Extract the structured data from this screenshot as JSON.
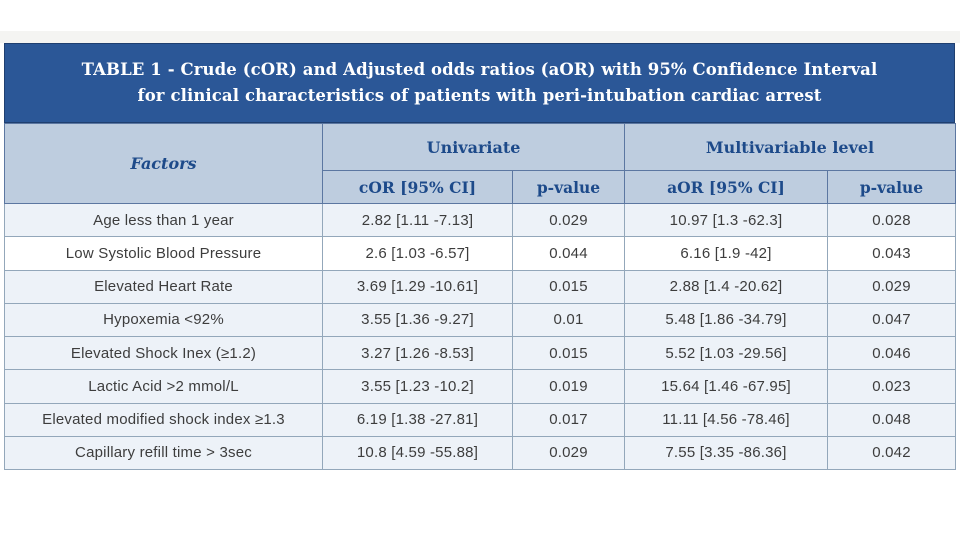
{
  "table": {
    "title_line1": "TABLE 1 - Crude (cOR) and Adjusted odds ratios (aOR) with 95% Confidence Interval",
    "title_line2": "for clinical characteristics of patients with peri-intubation cardiac arrest",
    "header": {
      "factors": "Factors",
      "group_univariate": "Univariate",
      "group_multivariable": "Multivariable level",
      "sub": [
        "cOR [95% CI]",
        "p-value",
        "aOR [95% CI]",
        "p-value"
      ]
    },
    "rows": [
      {
        "factor": "Age less than 1 year",
        "cor": "2.82 [1.11 -7.13]",
        "p1": "0.029",
        "aor": "10.97 [1.3 -62.3]",
        "p2": "0.028"
      },
      {
        "factor": "Low Systolic Blood Pressure",
        "cor": "2.6 [1.03 -6.57]",
        "p1": "0.044",
        "aor": "6.16 [1.9 -42]",
        "p2": "0.043"
      },
      {
        "factor": "Elevated Heart Rate",
        "cor": "3.69 [1.29 -10.61]",
        "p1": "0.015",
        "aor": "2.88 [1.4 -20.62]",
        "p2": "0.029"
      },
      {
        "factor": "Hypoxemia <92%",
        "cor": "3.55 [1.36 -9.27]",
        "p1": "0.01",
        "aor": "5.48 [1.86 -34.79]",
        "p2": "0.047"
      },
      {
        "factor": "Elevated Shock Inex (≥1.2)",
        "cor": "3.27 [1.26 -8.53]",
        "p1": "0.015",
        "aor": "5.52 [1.03 -29.56]",
        "p2": "0.046"
      },
      {
        "factor": "Lactic Acid >2 mmol/L",
        "cor": "3.55 [1.23 -10.2]",
        "p1": "0.019",
        "aor": "15.64 [1.46 -67.95]",
        "p2": "0.023"
      },
      {
        "factor": "Elevated modified shock index ≥1.3",
        "cor": "6.19 [1.38 -27.81]",
        "p1": "0.017",
        "aor": "11.11 [4.56 -78.46]",
        "p2": "0.048"
      },
      {
        "factor": "Capillary refill time > 3sec",
        "cor": "10.8 [4.59 -55.88]",
        "p1": "0.029",
        "aor": "7.55 [3.35 -86.36]",
        "p2": "0.042"
      }
    ],
    "colors": {
      "title_bar_bg": "#2b5797",
      "title_text": "#ffffff",
      "header_bg": "#becddf",
      "header_text": "#1d4a8a",
      "row_tint": "#edf2f8",
      "row_white": "#ffffff",
      "data_text": "#3d3d3d",
      "border_outer": "#2f4d7a",
      "border_header": "#5c77a1",
      "border_data": "#93a7ba"
    }
  }
}
